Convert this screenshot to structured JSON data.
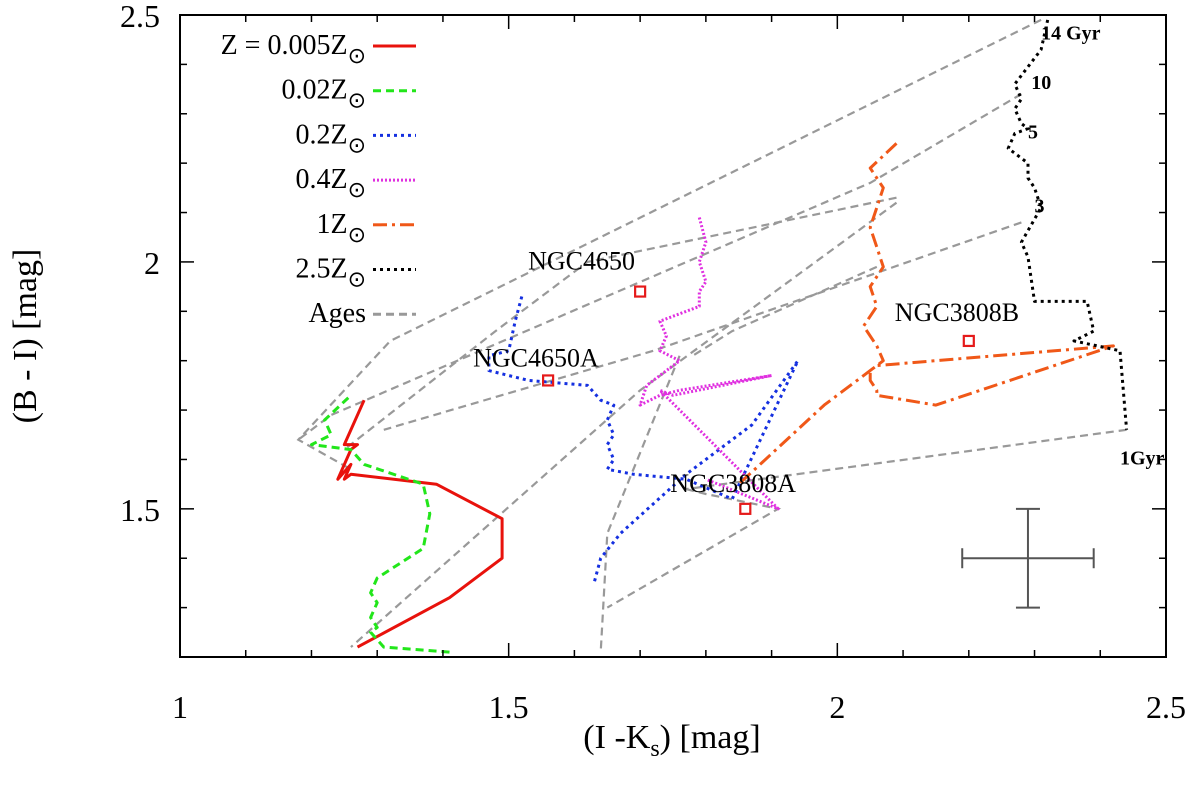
{
  "chart_data": {
    "type": "line",
    "xlabel": "(I -K",
    "xlabel_sub": "s",
    "xlabel_suffix": ") [mag]",
    "ylabel": "(B - I) [mag]",
    "xlim": [
      1.0,
      2.5
    ],
    "ylim": [
      1.2,
      2.5
    ],
    "xticks": [
      1,
      1.5,
      2,
      2.5
    ],
    "xtick_labels": [
      "1",
      "1.5",
      "2",
      "2.5"
    ],
    "yticks": [
      1.5,
      2,
      2.5
    ],
    "ytick_labels": [
      "1.5",
      "2",
      "2.5"
    ],
    "legend_position": "top-left",
    "series": [
      {
        "name": "Z = 0.005Z",
        "sub": "⊙",
        "color": "#e8120c",
        "dash": "",
        "x": [
          1.27,
          1.41,
          1.49,
          1.49,
          1.39,
          1.26,
          1.25,
          1.26,
          1.24,
          1.26,
          1.27,
          1.25,
          1.28
        ],
        "y": [
          1.22,
          1.32,
          1.4,
          1.48,
          1.55,
          1.57,
          1.56,
          1.59,
          1.56,
          1.62,
          1.63,
          1.63,
          1.72
        ]
      },
      {
        "name": "0.02Z",
        "sub": "⊙",
        "color": "#22e61a",
        "dash": "8,5",
        "x": [
          1.41,
          1.31,
          1.29,
          1.3,
          1.29,
          1.3,
          1.29,
          1.3,
          1.37,
          1.38,
          1.37,
          1.28,
          1.26,
          1.2,
          1.23,
          1.22,
          1.26
        ],
        "y": [
          1.21,
          1.22,
          1.25,
          1.26,
          1.28,
          1.31,
          1.33,
          1.36,
          1.42,
          1.49,
          1.55,
          1.59,
          1.62,
          1.63,
          1.65,
          1.68,
          1.73
        ]
      },
      {
        "name": "0.2Z",
        "sub": "⊙",
        "color": "#1530e0",
        "dash": "3,4",
        "x": [
          1.52,
          1.51,
          1.5,
          1.47,
          1.47,
          1.53,
          1.62,
          1.64,
          1.66,
          1.65,
          1.66,
          1.65,
          1.66,
          1.65,
          1.69,
          1.77,
          1.84,
          1.94,
          1.87,
          1.77,
          1.67,
          1.64,
          1.63
        ],
        "y": [
          1.93,
          1.88,
          1.82,
          1.81,
          1.78,
          1.76,
          1.75,
          1.72,
          1.71,
          1.68,
          1.65,
          1.63,
          1.6,
          1.58,
          1.57,
          1.56,
          1.52,
          1.8,
          1.67,
          1.57,
          1.45,
          1.4,
          1.35
        ]
      },
      {
        "name": "0.4Z",
        "sub": "⊙",
        "color": "#e030e0",
        "dash": "2,2",
        "x": [
          1.79,
          1.8,
          1.79,
          1.8,
          1.79,
          1.79,
          1.73,
          1.74,
          1.73,
          1.76,
          1.71,
          1.7,
          1.73,
          1.76,
          1.9,
          1.75,
          1.73,
          1.91,
          1.8
        ],
        "y": [
          2.09,
          2.04,
          2.0,
          1.96,
          1.94,
          1.91,
          1.88,
          1.85,
          1.82,
          1.8,
          1.75,
          1.71,
          1.73,
          1.74,
          1.77,
          1.73,
          1.74,
          1.5,
          1.56
        ]
      },
      {
        "name": "1Z",
        "sub": "⊙",
        "color": "#f05818",
        "dash": "14,5,3,5",
        "x": [
          2.09,
          2.05,
          2.07,
          2.06,
          2.05,
          2.06,
          2.07,
          2.05,
          2.06,
          2.04,
          2.06,
          2.07,
          2.05,
          2.05,
          2.06,
          2.06,
          2.15,
          2.42,
          2.06,
          1.98,
          1.85
        ],
        "y": [
          2.24,
          2.19,
          2.15,
          2.11,
          2.07,
          2.03,
          1.99,
          1.95,
          1.91,
          1.87,
          1.83,
          1.8,
          1.78,
          1.76,
          1.74,
          1.73,
          1.71,
          1.83,
          1.79,
          1.71,
          1.55
        ]
      },
      {
        "name": "2.5Z",
        "sub": "⊙",
        "color": "#000000",
        "dash": "3,4",
        "x": [
          2.32,
          2.31,
          2.27,
          2.28,
          2.27,
          2.28,
          2.29,
          2.27,
          2.26,
          2.29,
          2.29,
          2.29,
          2.3,
          2.31,
          2.28,
          2.29,
          2.3,
          2.38,
          2.39,
          2.36,
          2.43,
          2.44
        ],
        "y": [
          2.49,
          2.43,
          2.36,
          2.33,
          2.31,
          2.28,
          2.27,
          2.26,
          2.23,
          2.2,
          2.18,
          2.17,
          2.15,
          2.11,
          2.04,
          2.01,
          1.92,
          1.92,
          1.86,
          1.84,
          1.82,
          1.66
        ]
      }
    ],
    "age_lines": {
      "name": "Ages",
      "color": "#999999",
      "dash": "8,5",
      "lines": [
        {
          "x": [
            2.31,
            1.32,
            1.18,
            1.26
          ],
          "y": [
            2.49,
            1.84,
            1.64,
            1.58
          ]
        },
        {
          "x": [
            2.28,
            2.05,
            1.23,
            1.18
          ],
          "y": [
            2.34,
            2.16,
            1.69,
            1.64
          ]
        },
        {
          "x": [
            2.09,
            1.62,
            1.48,
            1.25
          ],
          "y": [
            2.13,
            2.0,
            1.86,
            1.62
          ]
        },
        {
          "x": [
            2.28,
            1.72,
            1.31
          ],
          "y": [
            2.08,
            1.82,
            1.66
          ]
        },
        {
          "x": [
            2.06,
            1.84,
            1.78
          ],
          "y": [
            1.99,
            1.86,
            1.81
          ]
        },
        {
          "x": [
            2.09,
            1.7,
            1.26
          ],
          "y": [
            2.12,
            1.74,
            1.22
          ]
        },
        {
          "x": [
            2.44,
            1.77
          ],
          "y": [
            1.66,
            1.54
          ]
        },
        {
          "x": [
            1.77,
            1.8,
            1.91,
            1.65
          ],
          "y": [
            1.54,
            1.53,
            1.5,
            1.3
          ]
        },
        {
          "x": [
            1.76,
            1.65,
            1.64
          ],
          "y": [
            1.81,
            1.45,
            1.21
          ]
        }
      ]
    },
    "galaxies": [
      {
        "name": "NGC4650",
        "x": 1.7,
        "y": 1.94
      },
      {
        "name": "NGC4650A",
        "x": 1.56,
        "y": 1.76
      },
      {
        "name": "NGC3808B",
        "x": 2.2,
        "y": 1.84
      },
      {
        "name": "NGC3808A",
        "x": 1.86,
        "y": 1.5
      }
    ],
    "galaxy_marker_color": "#e51a1a",
    "age_annotations": [
      {
        "text": "14 Gyr",
        "x": 2.31,
        "y": 2.45
      },
      {
        "text": "10",
        "x": 2.295,
        "y": 2.35
      },
      {
        "text": "5",
        "x": 2.29,
        "y": 2.25
      },
      {
        "text": "3",
        "x": 2.3,
        "y": 2.1
      },
      {
        "text": "1Gyr",
        "x": 2.43,
        "y": 1.59
      }
    ],
    "error_bar": {
      "x": 2.29,
      "y": 1.4,
      "xerr": 0.1,
      "yerr": 0.1,
      "color": "#555555"
    }
  }
}
